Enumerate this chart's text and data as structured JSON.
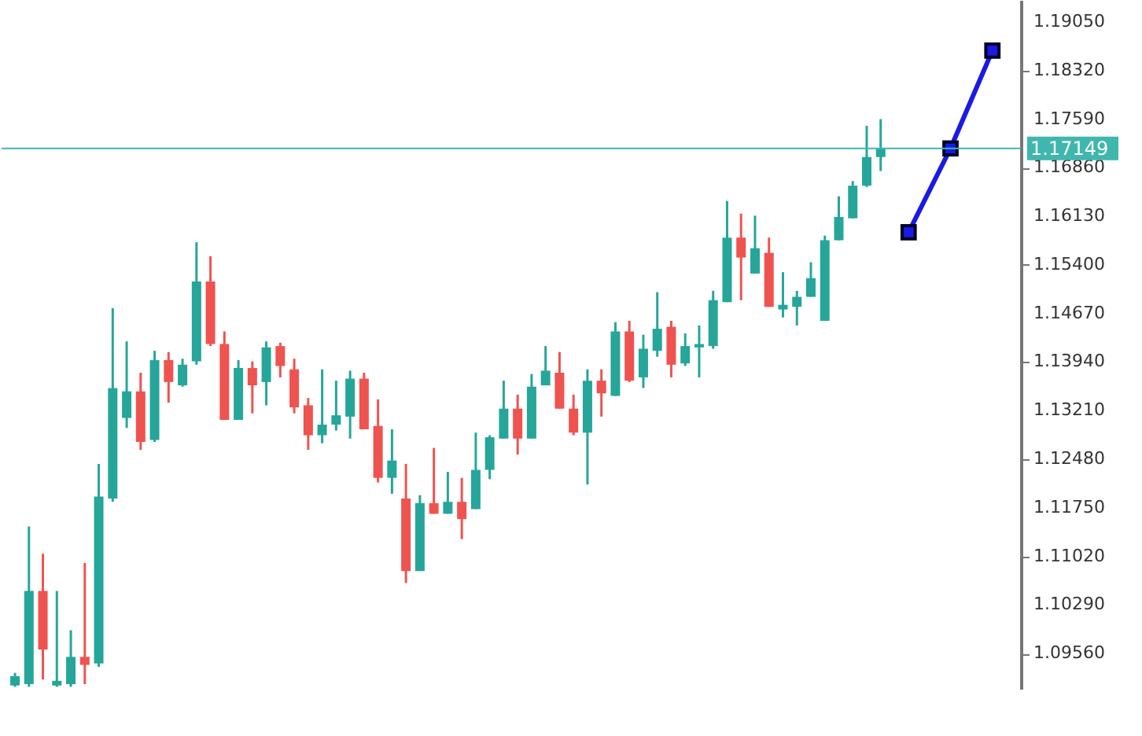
{
  "chart_data": {
    "type": "candlestick",
    "categories": [
      null,
      null,
      null,
      null,
      null,
      null,
      null,
      null,
      null,
      null,
      null,
      null,
      null,
      null,
      null,
      null,
      null,
      null,
      null,
      null,
      null,
      null,
      null,
      null,
      null,
      null,
      null,
      null,
      null,
      null,
      null,
      null,
      null,
      null,
      null,
      null,
      null,
      null,
      null,
      null,
      null,
      null,
      null,
      null,
      null,
      null,
      null,
      null,
      null,
      null,
      null,
      null,
      null,
      null,
      null,
      null,
      null,
      null,
      null,
      null,
      null,
      null,
      null,
      null,
      null,
      null,
      null,
      null,
      null,
      null,
      null
    ],
    "ohlc": [
      [
        1.0908,
        1.0927,
        1.0906,
        1.0922
      ],
      [
        1.091,
        1.1147,
        1.0906,
        1.105
      ],
      [
        1.105,
        1.1106,
        1.0917,
        1.0962
      ],
      [
        1.0908,
        1.105,
        1.0906,
        1.0915
      ],
      [
        1.091,
        1.0991,
        1.0906,
        1.0951
      ],
      [
        1.0951,
        1.1092,
        1.091,
        1.0939
      ],
      [
        1.0941,
        1.1241,
        1.0936,
        1.1192
      ],
      [
        1.1189,
        1.1475,
        1.1184,
        1.1355
      ],
      [
        1.131,
        1.1425,
        1.1295,
        1.135
      ],
      [
        1.135,
        1.1378,
        1.1262,
        1.1274
      ],
      [
        1.1277,
        1.1411,
        1.1274,
        1.1397
      ],
      [
        1.1397,
        1.1409,
        1.1333,
        1.1364
      ],
      [
        1.1359,
        1.1399,
        1.1357,
        1.139
      ],
      [
        1.1395,
        1.1574,
        1.139,
        1.1515
      ],
      [
        1.1515,
        1.1553,
        1.1418,
        1.1421
      ],
      [
        1.1421,
        1.144,
        1.1307,
        1.1307
      ],
      [
        1.1307,
        1.1397,
        1.1307,
        1.1385
      ],
      [
        1.1385,
        1.1395,
        1.1317,
        1.1359
      ],
      [
        1.1364,
        1.1425,
        1.1329,
        1.1416
      ],
      [
        1.1418,
        1.1423,
        1.1371,
        1.1388
      ],
      [
        1.1383,
        1.1399,
        1.1317,
        1.1326
      ],
      [
        1.1329,
        1.134,
        1.1262,
        1.1284
      ],
      [
        1.1284,
        1.1383,
        1.1272,
        1.13
      ],
      [
        1.13,
        1.1366,
        1.1291,
        1.1314
      ],
      [
        1.1312,
        1.1381,
        1.1279,
        1.1369
      ],
      [
        1.1369,
        1.1378,
        1.1293,
        1.1293
      ],
      [
        1.1298,
        1.1338,
        1.1213,
        1.122
      ],
      [
        1.122,
        1.1293,
        1.1196,
        1.1246
      ],
      [
        1.1189,
        1.1241,
        1.1062,
        1.108
      ],
      [
        1.108,
        1.1194,
        1.108,
        1.1182
      ],
      [
        1.1182,
        1.1265,
        1.1166,
        1.1166
      ],
      [
        1.1166,
        1.1229,
        1.1166,
        1.1184
      ],
      [
        1.1184,
        1.122,
        1.1128,
        1.1158
      ],
      [
        1.1173,
        1.1288,
        1.1173,
        1.1232
      ],
      [
        1.1232,
        1.1284,
        1.1218,
        1.1281
      ],
      [
        1.1279,
        1.1366,
        1.1279,
        1.1324
      ],
      [
        1.1324,
        1.1345,
        1.1255,
        1.1279
      ],
      [
        1.1279,
        1.1376,
        1.1279,
        1.1357
      ],
      [
        1.1359,
        1.1418,
        1.1359,
        1.1381
      ],
      [
        1.1378,
        1.1409,
        1.1324,
        1.1324
      ],
      [
        1.1324,
        1.1345,
        1.1284,
        1.1288
      ],
      [
        1.1288,
        1.1383,
        1.121,
        1.1366
      ],
      [
        1.1366,
        1.1383,
        1.1312,
        1.1347
      ],
      [
        1.1343,
        1.1454,
        1.1343,
        1.144
      ],
      [
        1.144,
        1.1456,
        1.1364,
        1.1366
      ],
      [
        1.1371,
        1.1435,
        1.1355,
        1.1414
      ],
      [
        1.1411,
        1.1499,
        1.1402,
        1.1444
      ],
      [
        1.1447,
        1.1456,
        1.1371,
        1.139
      ],
      [
        1.1392,
        1.1437,
        1.1388,
        1.1418
      ],
      [
        1.1416,
        1.1449,
        1.1371,
        1.1421
      ],
      [
        1.1418,
        1.1501,
        1.1414,
        1.1487
      ],
      [
        1.1484,
        1.1636,
        1.1484,
        1.1581
      ],
      [
        1.1581,
        1.1617,
        1.1487,
        1.1551
      ],
      [
        1.1527,
        1.1614,
        1.1527,
        1.1565
      ],
      [
        1.1558,
        1.1581,
        1.1477,
        1.1477
      ],
      [
        1.1473,
        1.1529,
        1.1461,
        1.148
      ],
      [
        1.1477,
        1.1501,
        1.1449,
        1.1492
      ],
      [
        1.1492,
        1.1544,
        1.1492,
        1.152
      ],
      [
        1.1456,
        1.1584,
        1.1456,
        1.1577
      ],
      [
        1.1577,
        1.1643,
        1.1577,
        1.1612
      ],
      [
        1.161,
        1.1666,
        1.161,
        1.1659
      ],
      [
        1.1659,
        1.1749,
        1.1657,
        1.1702
      ],
      [
        1.1702,
        1.1759,
        1.1681,
        1.1715
      ],
      null,
      null,
      null,
      null,
      null,
      null,
      null,
      null
    ],
    "colors": [
      "#26a69a",
      "#26a69a",
      "#ef5350",
      "#26a69a",
      "#26a69a",
      "#ef5350",
      "#26a69a",
      "#26a69a",
      "#26a69a",
      "#ef5350",
      "#26a69a",
      "#ef5350",
      "#26a69a",
      "#26a69a",
      "#ef5350",
      "#ef5350",
      "#26a69a",
      "#ef5350",
      "#26a69a",
      "#ef5350",
      "#ef5350",
      "#ef5350",
      "#26a69a",
      "#26a69a",
      "#26a69a",
      "#ef5350",
      "#ef5350",
      "#26a69a",
      "#ef5350",
      "#26a69a",
      "#ef5350",
      "#26a69a",
      "#ef5350",
      "#26a69a",
      "#26a69a",
      "#26a69a",
      "#ef5350",
      "#26a69a",
      "#26a69a",
      "#ef5350",
      "#ef5350",
      "#26a69a",
      "#ef5350",
      "#26a69a",
      "#ef5350",
      "#26a69a",
      "#26a69a",
      "#ef5350",
      "#26a69a",
      "#26a69a",
      "#26a69a",
      "#26a69a",
      "#ef5350",
      "#26a69a",
      "#ef5350",
      "#26a69a",
      "#26a69a",
      "#26a69a",
      "#26a69a",
      "#26a69a",
      "#26a69a",
      "#26a69a",
      "#26a69a",
      null,
      null,
      null,
      null,
      null,
      null,
      null,
      null
    ],
    "series": [
      {
        "type": "line",
        "color": "#1a1ae6",
        "values": [
          null,
          null,
          null,
          null,
          null,
          null,
          null,
          null,
          null,
          null,
          null,
          null,
          null,
          null,
          null,
          null,
          null,
          null,
          null,
          null,
          null,
          null,
          null,
          null,
          null,
          null,
          null,
          null,
          null,
          null,
          null,
          null,
          null,
          null,
          null,
          null,
          null,
          null,
          null,
          null,
          null,
          null,
          null,
          null,
          null,
          null,
          null,
          null,
          null,
          null,
          null,
          null,
          null,
          null,
          null,
          null,
          null,
          null,
          null,
          null,
          null,
          null,
          null,
          null,
          1.1589,
          null,
          null,
          1.1715,
          null,
          null,
          1.1862
        ]
      }
    ],
    "marker": "square",
    "ref_lines": [
      {
        "axis": "y",
        "value": 1.17149,
        "label": "1.17149",
        "color": "#3fb7ae"
      }
    ],
    "ylim": [
      1.0903,
      1.1938
    ],
    "yticks": [
      {
        "value": 1.0956,
        "label": "1.09560"
      },
      {
        "value": 1.1029,
        "label": "1.10290"
      },
      {
        "value": 1.1102,
        "label": "1.11020"
      },
      {
        "value": 1.1175,
        "label": "1.11750"
      },
      {
        "value": 1.1248,
        "label": "1.12480"
      },
      {
        "value": 1.1321,
        "label": "1.13210"
      },
      {
        "value": 1.1394,
        "label": "1.13940"
      },
      {
        "value": 1.1467,
        "label": "1.14670"
      },
      {
        "value": 1.154,
        "label": "1.15400"
      },
      {
        "value": 1.1613,
        "label": "1.16130"
      },
      {
        "value": 1.1686,
        "label": "1.16860"
      },
      {
        "value": 1.1759,
        "label": "1.17590"
      },
      {
        "value": 1.1832,
        "label": "1.18320"
      },
      {
        "value": 1.1905,
        "label": "1.19050"
      }
    ],
    "tick_labels": "y",
    "grid": false
  }
}
